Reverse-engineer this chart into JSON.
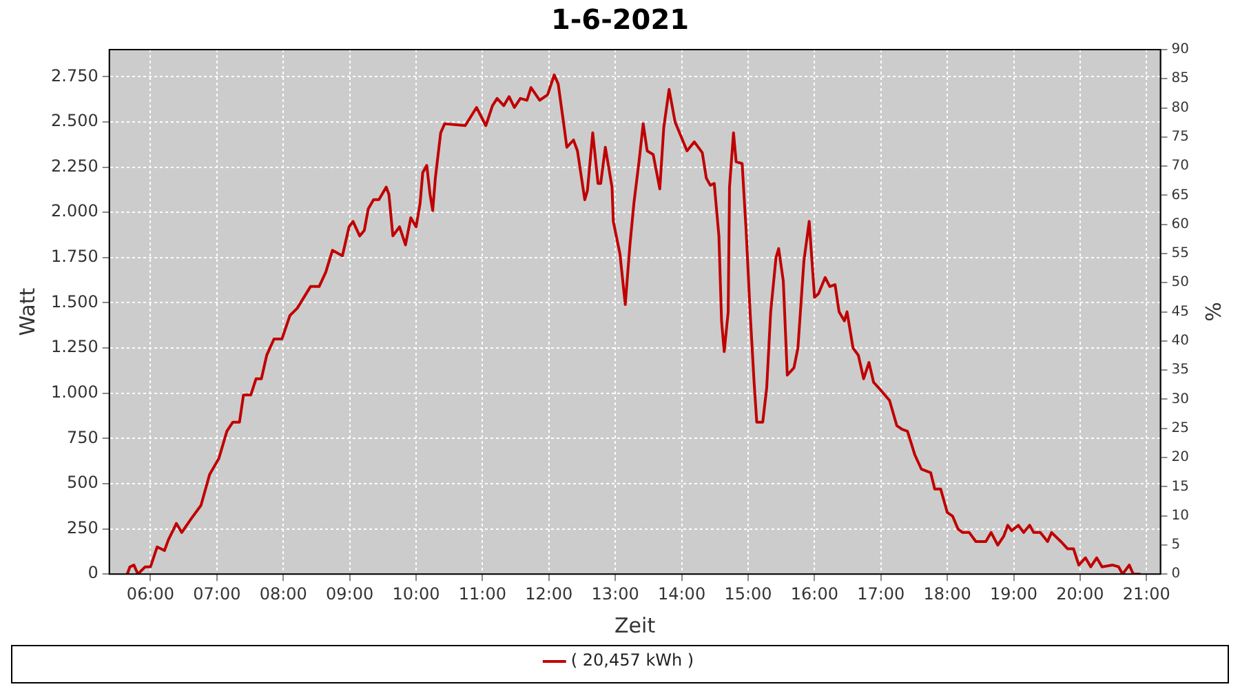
{
  "chart_data": {
    "type": "line",
    "title": "1-6-2021",
    "xlabel": "Zeit",
    "ylabel": "Watt",
    "y2label": "%",
    "xlim": [
      5.38,
      21.21
    ],
    "xticks": [
      {
        "value": 6,
        "label": "06:00"
      },
      {
        "value": 7,
        "label": "07:00"
      },
      {
        "value": 8,
        "label": "08:00"
      },
      {
        "value": 9,
        "label": "09:00"
      },
      {
        "value": 10,
        "label": "10:00"
      },
      {
        "value": 11,
        "label": "11:00"
      },
      {
        "value": 12,
        "label": "12:00"
      },
      {
        "value": 13,
        "label": "13:00"
      },
      {
        "value": 14,
        "label": "14:00"
      },
      {
        "value": 15,
        "label": "15:00"
      },
      {
        "value": 16,
        "label": "16:00"
      },
      {
        "value": 17,
        "label": "17:00"
      },
      {
        "value": 18,
        "label": "18:00"
      },
      {
        "value": 19,
        "label": "19:00"
      },
      {
        "value": 20,
        "label": "20:00"
      },
      {
        "value": 21,
        "label": "21:00"
      }
    ],
    "ylim": [
      0,
      2900
    ],
    "yticks": [
      0,
      {
        "value": 250,
        "label": "250"
      },
      {
        "value": 500,
        "label": "500"
      },
      {
        "value": 750,
        "label": "750"
      },
      {
        "value": 1000,
        "label": "1.000"
      },
      {
        "value": 1250,
        "label": "1.250"
      },
      {
        "value": 1500,
        "label": "1.500"
      },
      {
        "value": 1750,
        "label": "1.750"
      },
      {
        "value": 2000,
        "label": "2.000"
      },
      {
        "value": 2250,
        "label": "2.250"
      },
      {
        "value": 2500,
        "label": "2.500"
      },
      {
        "value": 2750,
        "label": "2.750"
      }
    ],
    "y2lim": [
      0,
      90
    ],
    "y2ticks": [
      0,
      5,
      10,
      15,
      20,
      25,
      30,
      35,
      40,
      45,
      50,
      55,
      60,
      65,
      70,
      75,
      80,
      85,
      90
    ],
    "grid": true,
    "legend": "bottom",
    "marker": "none",
    "line_style": "solid",
    "series": [
      {
        "name": "( 20,457 kWh )",
        "color": "#c00000",
        "x": [
          5.65,
          5.69,
          5.75,
          5.81,
          5.92,
          6.0,
          6.1,
          6.21,
          6.27,
          6.39,
          6.47,
          6.62,
          6.76,
          6.89,
          7.03,
          7.15,
          7.24,
          7.34,
          7.4,
          7.51,
          7.59,
          7.67,
          7.75,
          7.86,
          7.98,
          8.1,
          8.21,
          8.41,
          8.54,
          8.64,
          8.74,
          8.89,
          8.99,
          9.05,
          9.15,
          9.22,
          9.28,
          9.36,
          9.44,
          9.55,
          9.59,
          9.65,
          9.75,
          9.84,
          9.92,
          10.0,
          10.06,
          10.1,
          10.16,
          10.21,
          10.25,
          10.29,
          10.37,
          10.43,
          10.74,
          10.91,
          11.05,
          11.15,
          11.22,
          11.32,
          11.4,
          11.48,
          11.57,
          11.67,
          11.73,
          11.86,
          11.98,
          12.08,
          12.14,
          12.23,
          12.27,
          12.37,
          12.43,
          12.54,
          12.58,
          12.66,
          12.74,
          12.78,
          12.85,
          12.95,
          12.97,
          13.07,
          13.15,
          13.22,
          13.28,
          13.36,
          13.42,
          13.48,
          13.57,
          13.67,
          13.73,
          13.81,
          13.9,
          14.08,
          14.19,
          14.31,
          14.37,
          14.43,
          14.49,
          14.56,
          14.6,
          14.64,
          14.7,
          14.72,
          14.78,
          14.82,
          14.91,
          14.97,
          15.03,
          15.09,
          15.13,
          15.22,
          15.28,
          15.34,
          15.42,
          15.46,
          15.53,
          15.59,
          15.69,
          15.75,
          15.84,
          15.92,
          16.0,
          16.06,
          16.16,
          16.23,
          16.31,
          16.37,
          16.45,
          16.49,
          16.58,
          16.66,
          16.74,
          16.82,
          16.89,
          16.99,
          17.13,
          17.24,
          17.32,
          17.4,
          17.51,
          17.61,
          17.75,
          17.81,
          17.9,
          18.0,
          18.08,
          18.16,
          18.23,
          18.33,
          18.43,
          18.58,
          18.66,
          18.76,
          18.85,
          18.91,
          18.97,
          19.07,
          19.15,
          19.24,
          19.3,
          19.4,
          19.51,
          19.57,
          19.71,
          19.81,
          19.9,
          19.98,
          20.08,
          20.16,
          20.25,
          20.33,
          20.49,
          20.58,
          20.64,
          20.74,
          20.8,
          20.91
        ],
        "values": [
          0,
          40,
          50,
          0,
          40,
          40,
          150,
          130,
          190,
          280,
          230,
          310,
          380,
          550,
          640,
          790,
          840,
          840,
          990,
          990,
          1080,
          1080,
          1210,
          1300,
          1300,
          1430,
          1470,
          1590,
          1590,
          1670,
          1790,
          1760,
          1920,
          1950,
          1870,
          1900,
          2020,
          2070,
          2070,
          2140,
          2100,
          1870,
          1920,
          1820,
          1970,
          1920,
          2050,
          2220,
          2260,
          2100,
          2010,
          2190,
          2440,
          2490,
          2480,
          2580,
          2480,
          2590,
          2630,
          2590,
          2640,
          2580,
          2630,
          2620,
          2690,
          2620,
          2650,
          2760,
          2710,
          2470,
          2360,
          2400,
          2340,
          2070,
          2120,
          2440,
          2160,
          2160,
          2360,
          2140,
          1950,
          1770,
          1490,
          1820,
          2050,
          2290,
          2490,
          2340,
          2320,
          2130,
          2470,
          2680,
          2500,
          2340,
          2390,
          2330,
          2190,
          2150,
          2160,
          1870,
          1400,
          1230,
          1450,
          2140,
          2440,
          2280,
          2270,
          1900,
          1450,
          1060,
          840,
          840,
          1030,
          1450,
          1750,
          1800,
          1620,
          1100,
          1140,
          1250,
          1730,
          1950,
          1530,
          1550,
          1640,
          1590,
          1600,
          1450,
          1400,
          1450,
          1250,
          1210,
          1080,
          1170,
          1060,
          1020,
          960,
          820,
          800,
          790,
          660,
          580,
          560,
          470,
          470,
          340,
          320,
          250,
          230,
          230,
          180,
          180,
          230,
          160,
          210,
          270,
          240,
          270,
          230,
          270,
          230,
          230,
          180,
          230,
          180,
          140,
          140,
          50,
          90,
          40,
          90,
          40,
          50,
          40,
          0,
          50,
          0,
          0
        ]
      }
    ]
  }
}
